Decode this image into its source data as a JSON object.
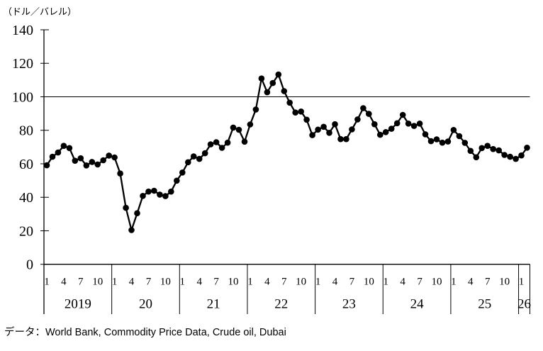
{
  "page": {
    "unit_label": "（ドル／バレル）",
    "source_note": "データ：World Bank, Commodity Price Data, Crude oil, Dubai"
  },
  "chart_data": {
    "type": "line",
    "title": "",
    "unit_label": "（ドル／バレル）",
    "series_name": "Crude oil price, Dubai (USD/barrel)",
    "ylim": [
      0,
      140
    ],
    "ytick_interval": 20,
    "yticks": [
      0,
      20,
      40,
      60,
      80,
      100,
      120,
      140
    ],
    "reference_line_y": 100,
    "grid": false,
    "legend": "none",
    "line_color": "#000000",
    "marker": "filled-circle",
    "marker_color": "#000000",
    "x_structure": "monthly categories Jan 2019 - Feb 2026, month tick labels 1/4/7/10 grouped under year bands",
    "years": [
      {
        "year_label": "2019",
        "month_tick_labels": [
          "1",
          "4",
          "7",
          "10"
        ],
        "monthly_values": [
          59.1,
          64.2,
          66.7,
          70.7,
          69.4,
          61.8,
          63.3,
          59.0,
          61.1,
          59.6,
          62.1,
          64.9
        ]
      },
      {
        "year_label": "20",
        "month_tick_labels": [
          "1",
          "4",
          "7",
          "10"
        ],
        "monthly_values": [
          63.8,
          54.2,
          33.7,
          20.4,
          30.5,
          40.8,
          43.4,
          43.9,
          41.6,
          40.7,
          43.4,
          49.9
        ]
      },
      {
        "year_label": "21",
        "month_tick_labels": [
          "1",
          "4",
          "7",
          "10"
        ],
        "monthly_values": [
          54.8,
          60.9,
          64.4,
          62.9,
          66.3,
          71.6,
          72.9,
          69.5,
          72.6,
          81.6,
          80.3,
          73.2
        ]
      },
      {
        "year_label": "22",
        "month_tick_labels": [
          "1",
          "4",
          "7",
          "10"
        ],
        "monthly_values": [
          83.5,
          92.4,
          110.9,
          102.7,
          108.2,
          113.3,
          103.4,
          96.5,
          90.6,
          91.2,
          86.3,
          77.1
        ]
      },
      {
        "year_label": "23",
        "month_tick_labels": [
          "1",
          "4",
          "7",
          "10"
        ],
        "monthly_values": [
          80.4,
          82.1,
          78.5,
          83.6,
          74.7,
          74.7,
          80.5,
          86.5,
          93.2,
          89.8,
          83.6,
          77.3
        ]
      },
      {
        "year_label": "24",
        "month_tick_labels": [
          "1",
          "4",
          "7",
          "10"
        ],
        "monthly_values": [
          78.9,
          80.9,
          84.2,
          89.2,
          84.0,
          82.6,
          84.0,
          77.6,
          73.5,
          74.6,
          72.6,
          73.3
        ]
      },
      {
        "year_label": "25",
        "month_tick_labels": [
          "1",
          "4",
          "7",
          "10"
        ],
        "monthly_values": [
          80.2,
          76.5,
          72.5,
          67.7,
          63.9,
          69.4,
          70.7,
          68.8,
          68.0,
          65.3,
          64.2,
          62.9
        ]
      },
      {
        "year_label": "26",
        "month_tick_labels": [
          "1"
        ],
        "monthly_values": [
          65.0,
          69.6
        ]
      }
    ],
    "source_note": "データ：World Bank, Commodity Price Data, Crude oil, Dubai"
  }
}
